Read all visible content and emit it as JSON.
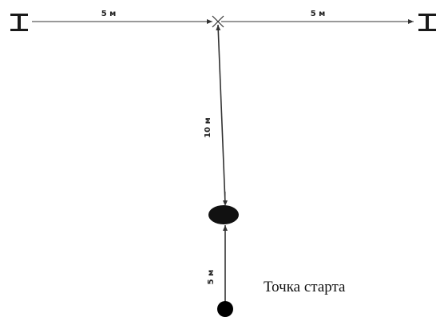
{
  "diagram": {
    "dimensions": {
      "top_left": "5 м",
      "top_right": "5 м",
      "vertical_long": "10 м",
      "vertical_short": "5 м"
    },
    "start_label": "Точка старта",
    "colors": {
      "line": "#333333",
      "marker": "#111111",
      "background": "#ffffff"
    },
    "icons": {
      "left_post": "hurdle-icon",
      "right_post": "hurdle-icon",
      "center_point": "cross-marker-icon",
      "cone": "cone-marker-icon",
      "start": "start-point-icon"
    }
  }
}
